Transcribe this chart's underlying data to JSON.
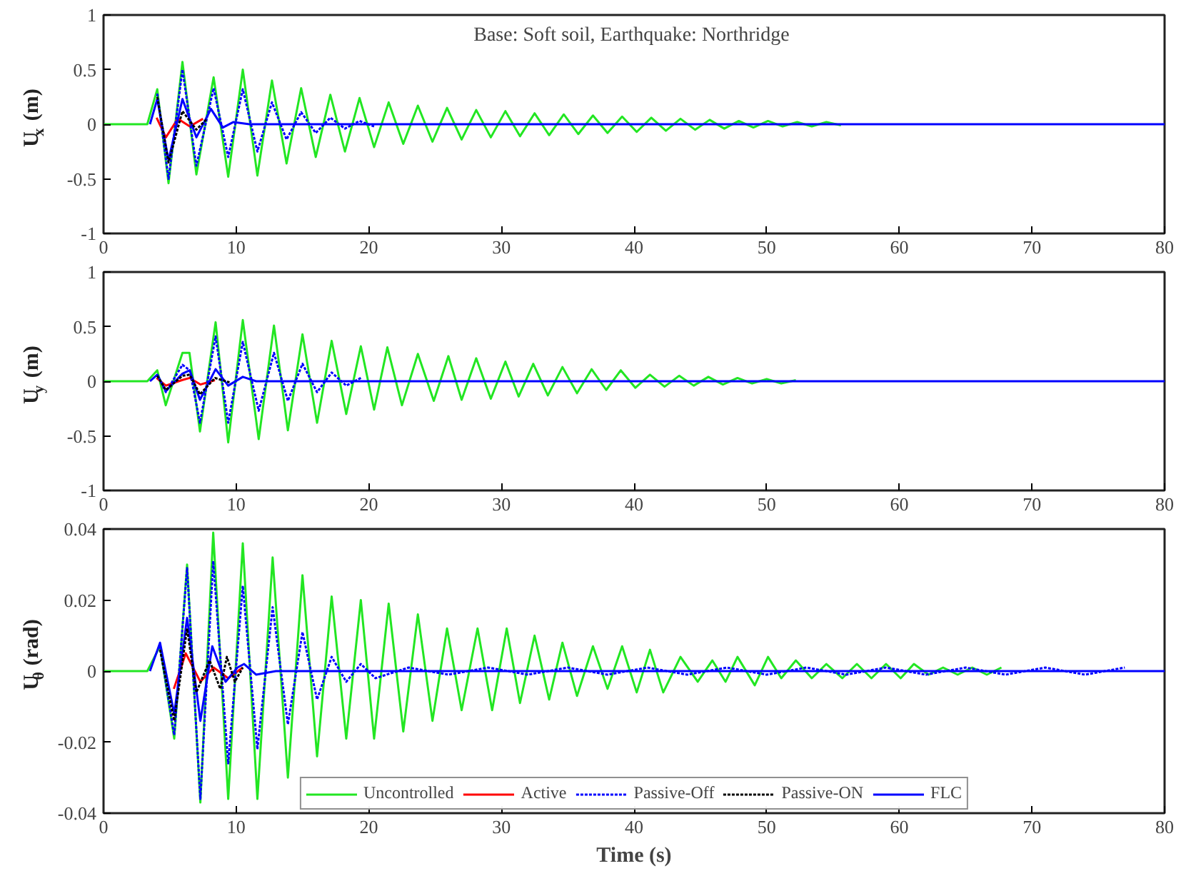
{
  "chart_data": [
    {
      "type": "line",
      "ylabel": "U$_{x}$ (m)",
      "xlim": [
        0,
        80
      ],
      "xticks": [
        0,
        10,
        20,
        30,
        40,
        50,
        60,
        70,
        80
      ],
      "ylim": [
        -1,
        1
      ],
      "yticks": [
        -1,
        -0.5,
        0,
        0.5,
        1
      ],
      "grid": false,
      "legend": false,
      "annotations": [
        "Base: Soft soil,  Earthquake: Northridge"
      ],
      "series": [
        {
          "color": "#22e622",
          "line_style": "solid",
          "x": [
            0,
            3.3,
            4.05,
            4.9,
            5.95,
            7.0,
            8.3,
            9.4,
            10.5,
            11.6,
            12.7,
            13.8,
            14.9,
            16.0,
            17.1,
            18.2,
            19.3,
            20.4,
            21.5,
            22.6,
            23.7,
            24.8,
            25.9,
            27.0,
            28.1,
            29.2,
            30.3,
            31.4,
            32.5,
            33.6,
            34.7,
            35.8,
            36.9,
            38.0,
            39.1,
            40.2,
            41.3,
            42.4,
            43.5,
            44.6,
            45.7,
            46.8,
            47.9,
            49.0,
            50.1,
            51.2,
            52.3,
            53.4,
            54.5,
            55.6
          ],
          "values": [
            0,
            0,
            0.32,
            -0.54,
            0.57,
            -0.46,
            0.43,
            -0.48,
            0.5,
            -0.47,
            0.4,
            -0.36,
            0.33,
            -0.3,
            0.27,
            -0.25,
            0.24,
            -0.21,
            0.2,
            -0.18,
            0.17,
            -0.16,
            0.15,
            -0.14,
            0.13,
            -0.12,
            0.12,
            -0.11,
            0.1,
            -0.1,
            0.09,
            -0.09,
            0.08,
            -0.08,
            0.07,
            -0.07,
            0.06,
            -0.06,
            0.05,
            -0.05,
            0.04,
            -0.04,
            0.03,
            -0.03,
            0.03,
            -0.02,
            0.02,
            -0.02,
            0.02,
            -0.01
          ]
        },
        {
          "color": "#ff0000",
          "line_style": "solid",
          "x": [
            4.0,
            4.7,
            5.6,
            6.5,
            7.5
          ],
          "values": [
            0.06,
            -0.12,
            0.05,
            -0.02,
            0.05
          ]
        },
        {
          "color": "#0000ff",
          "line_style": "dotted",
          "x": [
            4.05,
            4.9,
            5.95,
            7.0,
            8.3,
            9.4,
            10.5,
            11.6,
            12.7,
            13.8,
            14.9,
            16.0,
            17.1,
            18.2,
            19.3,
            20.4
          ],
          "values": [
            0.28,
            -0.5,
            0.5,
            -0.38,
            0.33,
            -0.3,
            0.32,
            -0.25,
            0.2,
            -0.14,
            0.11,
            -0.08,
            0.06,
            -0.04,
            0.03,
            -0.02
          ]
        },
        {
          "color": "#000000",
          "line_style": "dotted",
          "x": [
            4.05,
            4.9,
            5.95,
            7.0,
            7.8
          ],
          "values": [
            0.25,
            -0.35,
            0.12,
            -0.05,
            0.05
          ]
        },
        {
          "color": "#0000ff",
          "line_style": "solid",
          "x": [
            3.5,
            4.05,
            4.9,
            5.95,
            7.0,
            8.1,
            9.0,
            9.8,
            11,
            80
          ],
          "values": [
            0,
            0.23,
            -0.33,
            0.23,
            -0.12,
            0.14,
            -0.03,
            0.02,
            0,
            0
          ]
        }
      ]
    },
    {
      "type": "line",
      "ylabel": "U$_{y}$ (m)",
      "xlim": [
        0,
        80
      ],
      "xticks": [
        0,
        10,
        20,
        30,
        40,
        50,
        60,
        70,
        80
      ],
      "ylim": [
        -1,
        1
      ],
      "yticks": [
        -1,
        -0.5,
        0,
        0.5,
        1
      ],
      "grid": false,
      "legend": false,
      "series": [
        {
          "color": "#22e622",
          "line_style": "solid",
          "x": [
            0,
            3.3,
            4.05,
            4.69,
            5.95,
            6.48,
            7.27,
            8.45,
            9.4,
            10.5,
            11.7,
            12.85,
            13.9,
            15.0,
            16.1,
            17.2,
            18.3,
            19.4,
            20.4,
            21.4,
            22.5,
            23.7,
            24.9,
            26.0,
            27.0,
            28.1,
            29.2,
            30.3,
            31.3,
            32.4,
            33.5,
            34.6,
            35.7,
            36.8,
            37.9,
            39.0,
            40.1,
            41.2,
            42.3,
            43.4,
            44.5,
            45.6,
            46.7,
            47.8,
            48.9,
            50.0,
            51.1,
            52.2
          ],
          "values": [
            0,
            0,
            0.1,
            -0.22,
            0.26,
            0.26,
            -0.46,
            0.54,
            -0.56,
            0.56,
            -0.53,
            0.51,
            -0.45,
            0.43,
            -0.38,
            0.37,
            -0.3,
            0.32,
            -0.26,
            0.31,
            -0.22,
            0.25,
            -0.18,
            0.23,
            -0.17,
            0.21,
            -0.16,
            0.18,
            -0.14,
            0.16,
            -0.13,
            0.13,
            -0.11,
            0.11,
            -0.08,
            0.1,
            -0.06,
            0.06,
            -0.05,
            0.05,
            -0.04,
            0.04,
            -0.03,
            0.03,
            -0.02,
            0.02,
            -0.02,
            0.01
          ]
        },
        {
          "color": "#ff0000",
          "line_style": "solid",
          "x": [
            4.0,
            4.7,
            5.9,
            6.5,
            7.3,
            8.4
          ],
          "values": [
            0.03,
            -0.04,
            0.01,
            0.03,
            -0.03,
            0.01
          ]
        },
        {
          "color": "#0000ff",
          "line_style": "dotted",
          "x": [
            4.05,
            4.7,
            5.95,
            6.5,
            7.27,
            8.45,
            9.4,
            10.5,
            11.7,
            12.85,
            13.9,
            15.0,
            16.1,
            17.2,
            18.3,
            19.4
          ],
          "values": [
            0.06,
            -0.1,
            0.15,
            0.1,
            -0.38,
            0.41,
            -0.38,
            0.36,
            -0.27,
            0.26,
            -0.18,
            0.16,
            -0.1,
            0.08,
            -0.04,
            0.03
          ]
        },
        {
          "color": "#000000",
          "line_style": "dotted",
          "x": [
            4.05,
            4.7,
            5.95,
            6.5,
            7.27,
            8.4,
            9.5
          ],
          "values": [
            0.05,
            -0.08,
            0.05,
            0.06,
            -0.12,
            0.03,
            -0.01
          ]
        },
        {
          "color": "#0000ff",
          "line_style": "solid",
          "x": [
            3.5,
            4.05,
            4.7,
            5.95,
            6.5,
            7.27,
            8.45,
            9.4,
            10.5,
            11.5,
            80
          ],
          "values": [
            0,
            0.06,
            -0.09,
            0.07,
            0.1,
            -0.17,
            0.11,
            -0.04,
            0.04,
            0,
            0
          ]
        }
      ]
    },
    {
      "type": "line",
      "ylabel": "U$_{θ}$ (rad)",
      "xlabel": "Time (s)",
      "xlim": [
        0,
        80
      ],
      "xticks": [
        0,
        10,
        20,
        30,
        40,
        50,
        60,
        70,
        80
      ],
      "ylim": [
        -0.04,
        0.04
      ],
      "yticks": [
        -0.04,
        -0.02,
        0,
        0.02,
        0.04
      ],
      "grid": false,
      "legend": "bottom",
      "series": [
        {
          "name": "Uncontrolled",
          "color": "#22e622",
          "line_style": "solid",
          "x": [
            0,
            3.3,
            4.26,
            5.33,
            6.3,
            7.3,
            8.27,
            9.4,
            10.5,
            11.6,
            12.75,
            13.9,
            15.0,
            16.1,
            17.2,
            18.3,
            19.4,
            20.4,
            21.5,
            22.6,
            23.7,
            24.8,
            25.9,
            27.0,
            28.2,
            29.3,
            30.4,
            31.4,
            32.5,
            33.6,
            34.6,
            35.7,
            36.9,
            38.0,
            39.1,
            40.2,
            41.2,
            42.2,
            43.5,
            44.8,
            45.9,
            46.9,
            47.8,
            49.1,
            50.1,
            51.1,
            52.2,
            53.4,
            54.5,
            55.7,
            56.8,
            57.9,
            59.0,
            60.1,
            61.1,
            62.2,
            63.3,
            64.4,
            65.5,
            66.6,
            67.7
          ],
          "values": [
            0,
            0,
            0.007,
            -0.019,
            0.03,
            -0.037,
            0.039,
            -0.036,
            0.036,
            -0.036,
            0.032,
            -0.03,
            0.027,
            -0.024,
            0.021,
            -0.019,
            0.02,
            -0.019,
            0.019,
            -0.017,
            0.016,
            -0.014,
            0.012,
            -0.011,
            0.012,
            -0.011,
            0.012,
            -0.009,
            0.01,
            -0.008,
            0.008,
            -0.007,
            0.007,
            -0.005,
            0.007,
            -0.006,
            0.006,
            -0.006,
            0.004,
            -0.003,
            0.003,
            -0.003,
            0.004,
            -0.004,
            0.004,
            -0.002,
            0.003,
            -0.002,
            0.002,
            -0.002,
            0.002,
            -0.002,
            0.002,
            -0.002,
            0.002,
            -0.001,
            0.001,
            -0.001,
            0.001,
            -0.001,
            0.001
          ]
        },
        {
          "name": "Active",
          "color": "#ff0000",
          "line_style": "solid",
          "x": [
            5.3,
            6.2,
            7.3,
            8.3,
            9.4,
            10.5
          ],
          "values": [
            -0.005,
            0.005,
            -0.003,
            0.001,
            -0.002,
            0.001
          ]
        },
        {
          "name": "Passive-Off",
          "color": "#0000ff",
          "line_style": "dotted",
          "x": [
            4.26,
            5.33,
            6.3,
            7.3,
            8.27,
            9.4,
            10.5,
            11.6,
            12.75,
            13.9,
            15.0,
            16.1,
            17.2,
            18.3,
            19.4,
            20.5,
            23,
            26,
            29,
            32,
            35,
            38,
            41,
            44,
            47,
            50,
            53,
            56,
            59,
            62,
            65,
            68,
            71,
            74,
            77
          ],
          "values": [
            0.007,
            -0.018,
            0.029,
            -0.036,
            0.031,
            -0.026,
            0.024,
            -0.022,
            0.018,
            -0.015,
            0.011,
            -0.008,
            0.004,
            -0.003,
            0.002,
            -0.002,
            0.001,
            -0.001,
            0.001,
            -0.001,
            0.001,
            -0.001,
            0.001,
            -0.001,
            0.001,
            -0.001,
            0.001,
            -0.001,
            0.001,
            -0.001,
            0.001,
            -0.001,
            0.001,
            -0.001,
            0.001
          ]
        },
        {
          "name": "Passive-ON",
          "color": "#000000",
          "line_style": "dotted",
          "x": [
            4.26,
            5.33,
            6.3,
            7.0,
            8.0,
            8.8,
            9.3,
            9.9,
            10.5
          ],
          "values": [
            0.006,
            -0.014,
            0.012,
            -0.006,
            0.003,
            -0.005,
            0.004,
            -0.003,
            0.001
          ]
        },
        {
          "name": "FLC",
          "color": "#0000ff",
          "line_style": "solid",
          "x": [
            3.5,
            4.26,
            5.33,
            6.3,
            7.3,
            8.2,
            9.2,
            10.1,
            10.6,
            11.5,
            13,
            80
          ],
          "values": [
            0,
            0.008,
            -0.012,
            0.015,
            -0.014,
            0.007,
            -0.003,
            0.001,
            0.002,
            -0.001,
            0,
            0
          ]
        }
      ]
    }
  ]
}
